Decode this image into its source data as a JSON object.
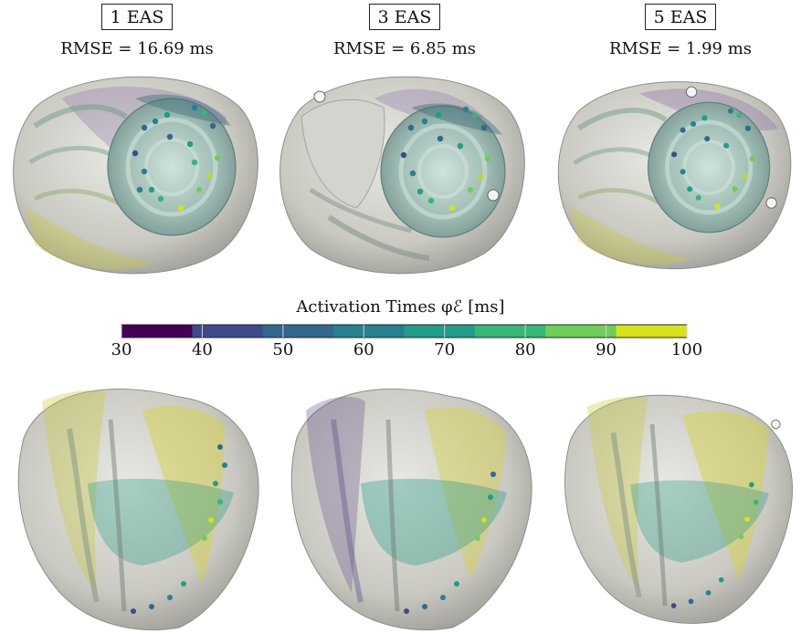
{
  "columns": [
    {
      "label": "1 EAS",
      "rmse": "RMSE = 16.69 ms"
    },
    {
      "label": "3 EAS",
      "rmse": "RMSE = 6.85 ms"
    },
    {
      "label": "5 EAS",
      "rmse": "RMSE = 1.99 ms"
    }
  ],
  "colorbar": {
    "title": "Activation Times φℰ [ms]",
    "ticks": [
      "30",
      "40",
      "50",
      "60",
      "70",
      "80",
      "90",
      "100"
    ],
    "colors": [
      "#440154",
      "#3e4a89",
      "#31688e",
      "#26828e",
      "#1f9e89",
      "#35b779",
      "#6ece58",
      "#d8e219"
    ]
  },
  "views": [
    "top-view",
    "side-view"
  ]
}
